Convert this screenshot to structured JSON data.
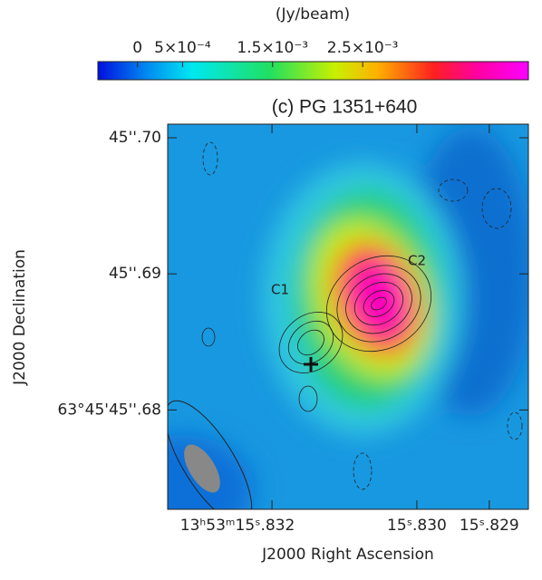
{
  "chart_data": {
    "type": "image",
    "title": "(c) PG 1351+640",
    "colorbar_label": "(Jy/beam)",
    "clim": [
      -0.00044,
      0.00434
    ],
    "cticks": [
      0,
      {
        "value": 0.0005,
        "label": "5×10⁻⁴"
      },
      {
        "value": 0.0015,
        "label": "1.5×10⁻³"
      },
      {
        "value": 0.0025,
        "label": "2.5×10⁻³"
      }
    ],
    "xlabel": "J2000 Right Ascension",
    "ylabel": "J2000 Declination",
    "xlim": [
      15.83344,
      15.82846
    ],
    "xticks": [
      {
        "value": 15.832,
        "label": "13ʰ53ᵐ15ˢ.832"
      },
      {
        "value": 15.83,
        "label": "15ˢ.830"
      },
      {
        "value": 15.829,
        "label": "15ˢ.829"
      }
    ],
    "ylim": [
      45.6727,
      45.701
    ],
    "yticks": [
      {
        "value": 45.7,
        "label": "45''.70"
      },
      {
        "value": 45.69,
        "label": "45''.69"
      },
      {
        "value": 45.68,
        "label": "63°45'45''.68"
      }
    ],
    "annotations": [
      "C1",
      "C2"
    ]
  }
}
